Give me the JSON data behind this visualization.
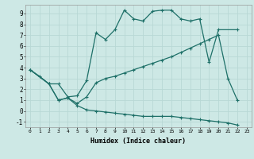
{
  "xlabel": "Humidex (Indice chaleur)",
  "bg_color": "#cde8e5",
  "grid_color": "#b8d8d5",
  "line_color": "#1e7068",
  "xlim": [
    -0.5,
    23.5
  ],
  "ylim": [
    -1.5,
    9.8
  ],
  "xticks": [
    0,
    1,
    2,
    3,
    4,
    5,
    6,
    7,
    8,
    9,
    10,
    11,
    12,
    13,
    14,
    15,
    16,
    17,
    18,
    19,
    20,
    21,
    22,
    23
  ],
  "yticks": [
    -1,
    0,
    1,
    2,
    3,
    4,
    5,
    6,
    7,
    8,
    9
  ],
  "line1_x": [
    0,
    1,
    2,
    3,
    4,
    5,
    6,
    7,
    8,
    9,
    10,
    11,
    12,
    13,
    14,
    15,
    16,
    17,
    18,
    19,
    20,
    22
  ],
  "line1_y": [
    3.8,
    3.2,
    2.5,
    2.5,
    1.3,
    1.4,
    2.8,
    7.2,
    6.6,
    7.5,
    9.3,
    8.5,
    8.3,
    9.2,
    9.3,
    9.3,
    8.5,
    8.3,
    8.5,
    4.5,
    7.5,
    7.5
  ],
  "line2_x": [
    0,
    2,
    3,
    4,
    5,
    6,
    7,
    8,
    9,
    10,
    11,
    12,
    13,
    14,
    15,
    16,
    17,
    18,
    19,
    20,
    21,
    22
  ],
  "line2_y": [
    3.8,
    2.5,
    1.0,
    1.2,
    0.7,
    1.3,
    2.6,
    3.0,
    3.2,
    3.5,
    3.8,
    4.1,
    4.4,
    4.7,
    5.0,
    5.4,
    5.8,
    6.2,
    6.6,
    7.0,
    3.0,
    1.0
  ],
  "line3_x": [
    0,
    2,
    3,
    4,
    5,
    6,
    7,
    8,
    9,
    10,
    11,
    12,
    13,
    14,
    15,
    16,
    17,
    18,
    19,
    20,
    21,
    22
  ],
  "line3_y": [
    3.8,
    2.5,
    1.0,
    1.2,
    0.5,
    0.1,
    0.0,
    -0.1,
    -0.2,
    -0.3,
    -0.4,
    -0.5,
    -0.5,
    -0.5,
    -0.5,
    -0.6,
    -0.7,
    -0.8,
    -0.9,
    -1.0,
    -1.1,
    -1.3
  ]
}
